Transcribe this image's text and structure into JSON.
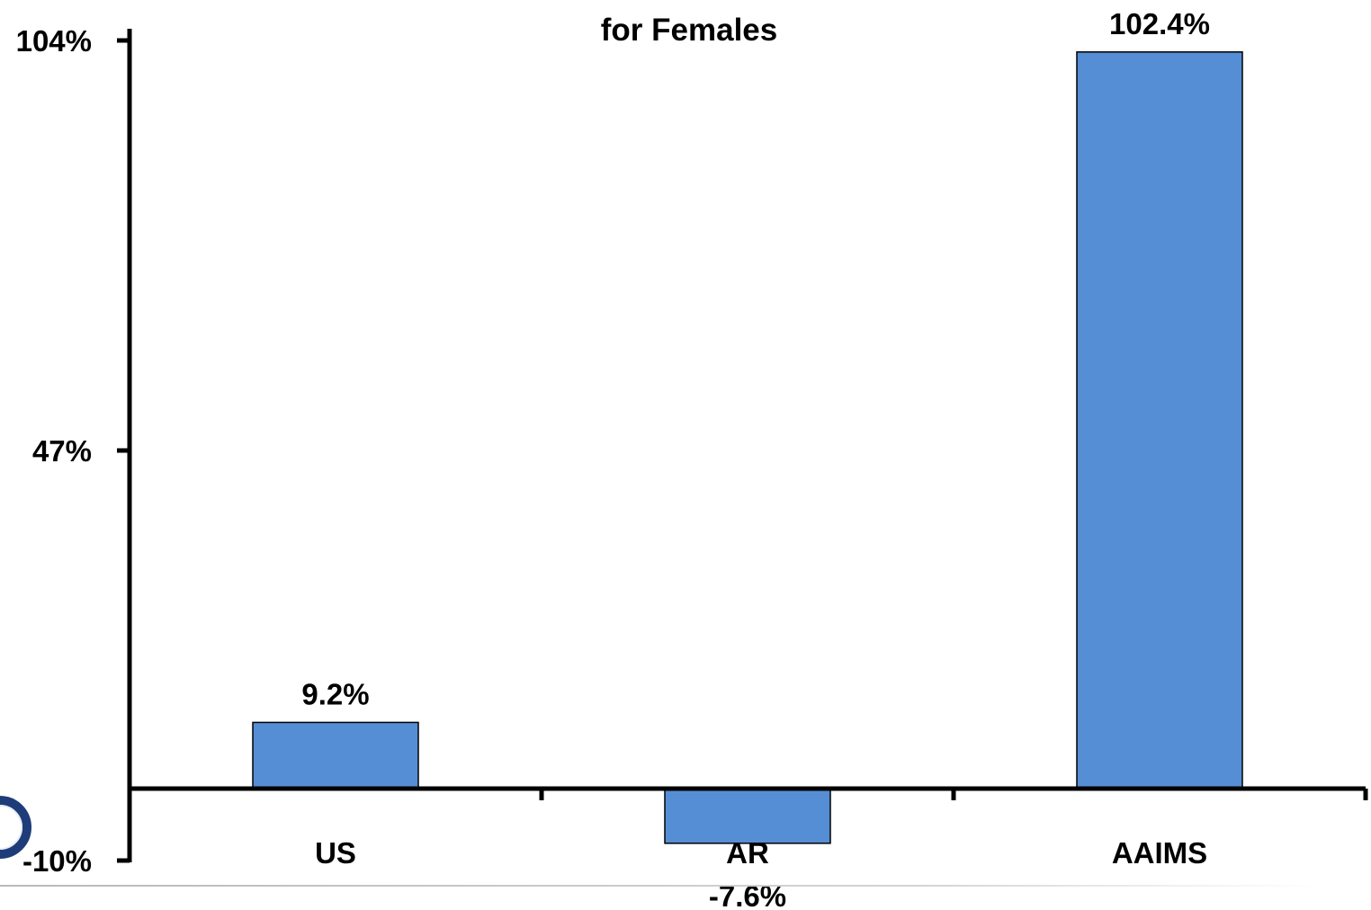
{
  "title_lines": [
    "",
    "for Females"
  ],
  "colors": {
    "bar": "#558ED5",
    "axis": "#000000",
    "text": "#000000",
    "logo": "#1f3c7a"
  },
  "icons": {
    "logo": "circular-logo-icon"
  },
  "chart_data": {
    "type": "bar",
    "title": "for Females",
    "categories": [
      "US",
      "AR",
      "AAIMS"
    ],
    "values": [
      9.2,
      -7.6,
      102.4
    ],
    "value_labels": [
      "9.2%",
      "-7.6%",
      "102.4%"
    ],
    "y_ticks": [
      104,
      47,
      -10
    ],
    "y_tick_labels": [
      "104%",
      "47%",
      "-10%"
    ],
    "ylim": [
      -10,
      104
    ],
    "xlabel": "",
    "ylabel": "",
    "grid": false,
    "legend": "none"
  }
}
